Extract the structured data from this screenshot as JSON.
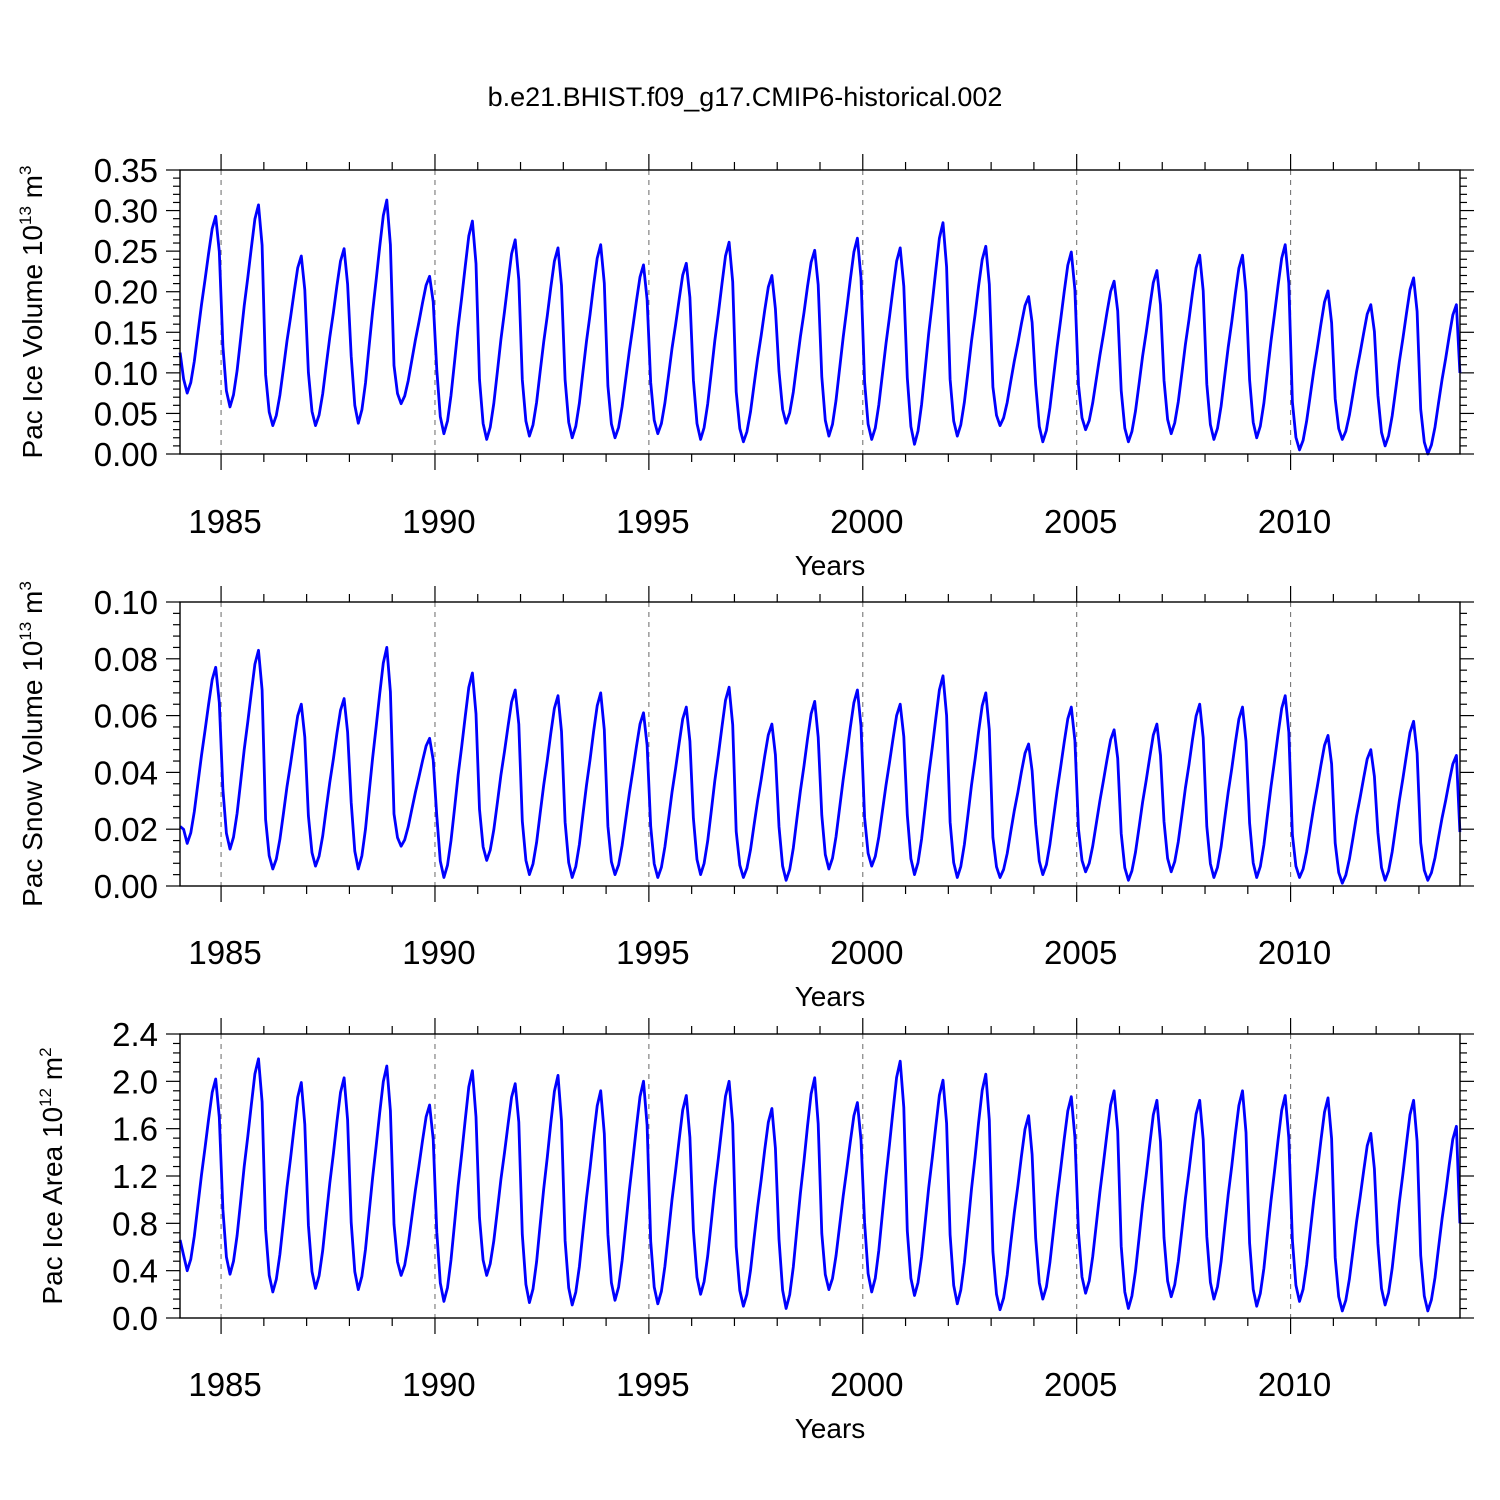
{
  "title": "b.e21.BHIST.f09_g17.CMIP6-historical.002",
  "colors": {
    "series": "#0000ff",
    "axes": "#000000",
    "grid": "#777777"
  },
  "chart_data": [
    {
      "type": "line",
      "ylabel_main": "Pac Ice Volume 10",
      "ylabel_sup": "13",
      "ylabel_tail": " m",
      "ylabel_sup2": "3",
      "xlabel": "Years",
      "xlim": [
        1984.04,
        2013.96
      ],
      "ylim": [
        0.0,
        0.35
      ],
      "yticks": [
        0.0,
        0.05,
        0.1,
        0.15,
        0.2,
        0.25,
        0.3,
        0.35
      ],
      "ytick_labels": [
        "0.00",
        "0.05",
        "0.10",
        "0.15",
        "0.20",
        "0.25",
        "0.30",
        "0.35"
      ],
      "xticks": [
        1985,
        1990,
        1995,
        2000,
        2005,
        2010
      ],
      "xtick_labels": [
        "1985",
        "1990",
        "1995",
        "2000",
        "2005",
        "2010"
      ],
      "vertical_grid": "dashed at major x ticks",
      "monthly": {
        "start_year": 1984,
        "minima": [
          0.075,
          0.058,
          0.035,
          0.035,
          0.038,
          0.062,
          0.025,
          0.018,
          0.022,
          0.02,
          0.02,
          0.025,
          0.018,
          0.015,
          0.038,
          0.022,
          0.018,
          0.012,
          0.022,
          0.035,
          0.015,
          0.03,
          0.015,
          0.025,
          0.018,
          0.02,
          0.005,
          0.018,
          0.01,
          0.0
        ],
        "maxima": [
          0.293,
          0.307,
          0.244,
          0.253,
          0.313,
          0.219,
          0.287,
          0.264,
          0.254,
          0.258,
          0.233,
          0.235,
          0.261,
          0.22,
          0.251,
          0.266,
          0.254,
          0.285,
          0.256,
          0.194,
          0.249,
          0.213,
          0.226,
          0.245,
          0.245,
          0.258,
          0.201,
          0.184,
          0.217,
          0.184
        ],
        "first_value": 0.125,
        "last_value": 0.1
      }
    },
    {
      "type": "line",
      "ylabel_main": "Pac Snow Volume 10",
      "ylabel_sup": "13",
      "ylabel_tail": " m",
      "ylabel_sup2": "3",
      "xlabel": "Years",
      "xlim": [
        1984.04,
        2013.96
      ],
      "ylim": [
        0.0,
        0.1
      ],
      "yticks": [
        0.0,
        0.02,
        0.04,
        0.06,
        0.08,
        0.1
      ],
      "ytick_labels": [
        "0.00",
        "0.02",
        "0.04",
        "0.06",
        "0.08",
        "0.10"
      ],
      "xticks": [
        1985,
        1990,
        1995,
        2000,
        2005,
        2010
      ],
      "xtick_labels": [
        "1985",
        "1990",
        "1995",
        "2000",
        "2005",
        "2010"
      ],
      "vertical_grid": "dashed at major x ticks",
      "monthly": {
        "start_year": 1984,
        "minima": [
          0.015,
          0.013,
          0.006,
          0.007,
          0.006,
          0.014,
          0.003,
          0.009,
          0.004,
          0.003,
          0.004,
          0.003,
          0.004,
          0.003,
          0.002,
          0.006,
          0.007,
          0.004,
          0.003,
          0.003,
          0.004,
          0.005,
          0.002,
          0.005,
          0.003,
          0.003,
          0.003,
          0.001,
          0.002,
          0.002
        ],
        "maxima": [
          0.077,
          0.083,
          0.064,
          0.066,
          0.084,
          0.052,
          0.075,
          0.069,
          0.067,
          0.068,
          0.061,
          0.063,
          0.07,
          0.057,
          0.065,
          0.069,
          0.064,
          0.074,
          0.068,
          0.05,
          0.063,
          0.055,
          0.057,
          0.064,
          0.063,
          0.067,
          0.053,
          0.048,
          0.058,
          0.046
        ],
        "first_value": 0.021,
        "last_value": 0.019
      }
    },
    {
      "type": "line",
      "ylabel_main": "Pac Ice Area 10",
      "ylabel_sup": "12",
      "ylabel_tail": " m",
      "ylabel_sup2": "2",
      "xlabel": "Years",
      "xlim": [
        1984.04,
        2013.96
      ],
      "ylim": [
        0.0,
        2.4
      ],
      "yticks": [
        0.0,
        0.4,
        0.8,
        1.2,
        1.6,
        2.0,
        2.4
      ],
      "ytick_labels": [
        "0.0",
        "0.4",
        "0.8",
        "1.2",
        "1.6",
        "2.0",
        "2.4"
      ],
      "xticks": [
        1985,
        1990,
        1995,
        2000,
        2005,
        2010
      ],
      "xtick_labels": [
        "1985",
        "1990",
        "1995",
        "2000",
        "2005",
        "2010"
      ],
      "vertical_grid": "dashed at major x ticks",
      "monthly": {
        "start_year": 1984,
        "minima": [
          0.4,
          0.37,
          0.22,
          0.25,
          0.24,
          0.36,
          0.14,
          0.36,
          0.13,
          0.11,
          0.15,
          0.12,
          0.2,
          0.1,
          0.08,
          0.24,
          0.22,
          0.19,
          0.12,
          0.07,
          0.16,
          0.21,
          0.08,
          0.18,
          0.16,
          0.1,
          0.14,
          0.06,
          0.11,
          0.06
        ],
        "maxima": [
          2.02,
          2.19,
          1.99,
          2.03,
          2.13,
          1.8,
          2.09,
          1.98,
          2.05,
          1.92,
          2.0,
          1.88,
          2.0,
          1.77,
          2.03,
          1.82,
          2.17,
          2.01,
          2.06,
          1.71,
          1.87,
          1.92,
          1.84,
          1.84,
          1.92,
          1.88,
          1.86,
          1.56,
          1.84,
          1.62
        ],
        "first_value": 0.66,
        "last_value": 0.8
      }
    }
  ]
}
